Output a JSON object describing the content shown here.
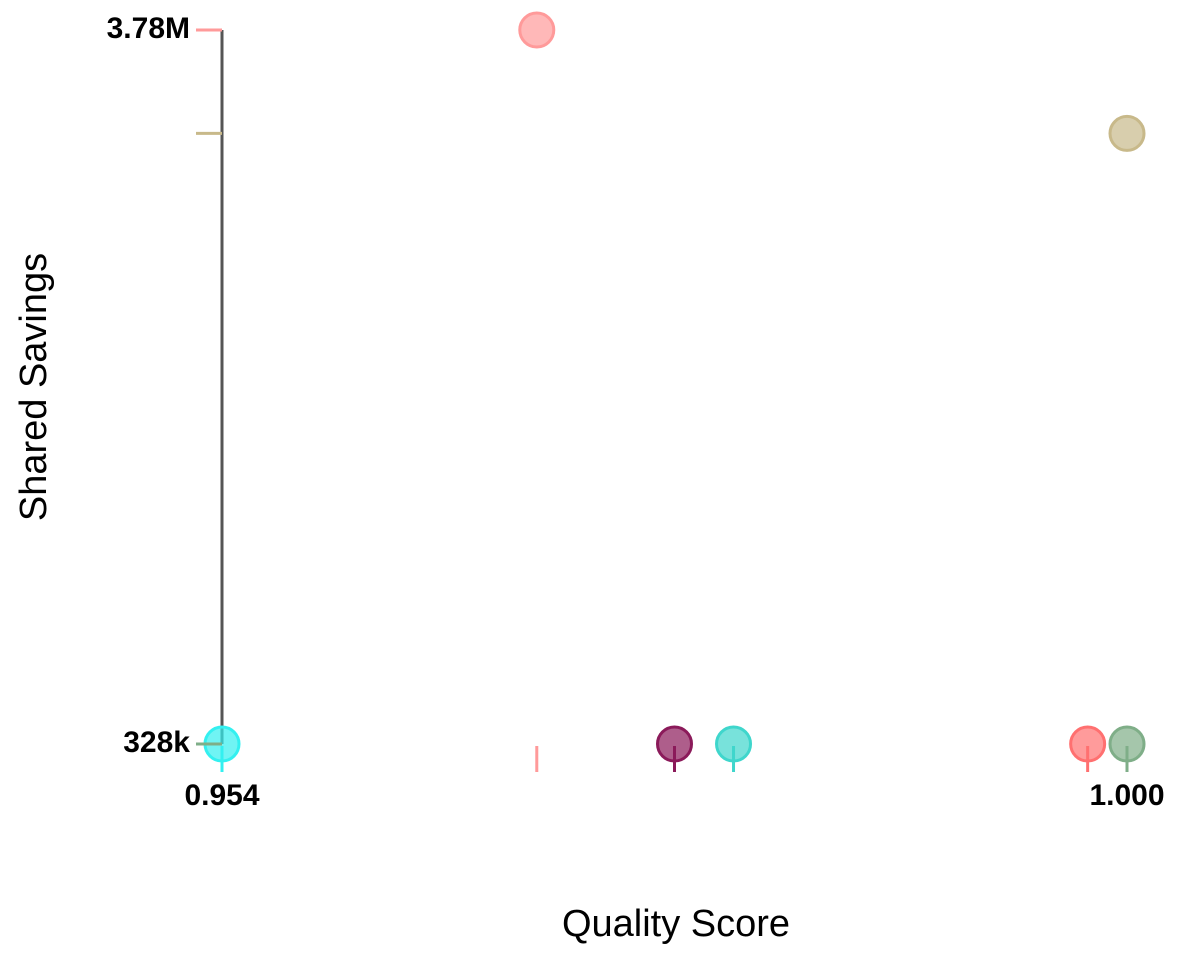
{
  "chart_data": {
    "type": "scatter",
    "x_label": "Quality Score",
    "y_label": "Shared Savings",
    "x": [
      0.97,
      1.0,
      0.954,
      0.977,
      0.98,
      0.998,
      1.0
    ],
    "values": [
      3780000,
      3280000,
      328000,
      328000,
      328000,
      328000,
      328000
    ],
    "colors": [
      "#ff9a9a",
      "#c8b98a",
      "#33f0f0",
      "#8b1a5a",
      "#3fd6cc",
      "#ff7070",
      "#7fae88"
    ],
    "xlim": [
      0.954,
      1.0
    ],
    "ylim": [
      328000,
      3780000
    ],
    "xticks": [
      0.954,
      {
        "value": 1.0,
        "label": "1.000"
      }
    ],
    "yticks": [
      {
        "value": 328000,
        "label": "328k"
      },
      {
        "value": 3780000,
        "label": "3.78M"
      }
    ]
  }
}
